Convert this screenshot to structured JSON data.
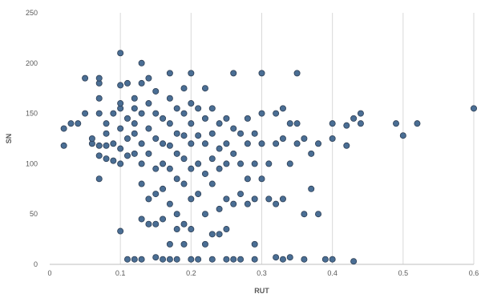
{
  "chart_data": {
    "type": "scatter",
    "title": "",
    "xlabel": "RUT",
    "ylabel": "SN",
    "xlim": [
      0,
      0.6
    ],
    "ylim": [
      0,
      250
    ],
    "x_ticks": [
      "0",
      "0.1",
      "0.2",
      "0.3",
      "0.4",
      "0.5",
      "0.6"
    ],
    "y_ticks": [
      "0",
      "50",
      "100",
      "150",
      "200",
      "250"
    ],
    "grid": "vertical",
    "legend": "none",
    "marker_color": "#4a6e94",
    "marker_edge_color": "#2e3f55",
    "series": [
      {
        "points": [
          [
            0.02,
            135
          ],
          [
            0.02,
            118
          ],
          [
            0.03,
            140
          ],
          [
            0.04,
            140
          ],
          [
            0.05,
            150
          ],
          [
            0.05,
            185
          ],
          [
            0.06,
            120
          ],
          [
            0.06,
            125
          ],
          [
            0.07,
            180
          ],
          [
            0.07,
            185
          ],
          [
            0.07,
            165
          ],
          [
            0.07,
            150
          ],
          [
            0.07,
            118
          ],
          [
            0.07,
            108
          ],
          [
            0.07,
            85
          ],
          [
            0.08,
            140
          ],
          [
            0.08,
            130
          ],
          [
            0.08,
            118
          ],
          [
            0.08,
            105
          ],
          [
            0.09,
            150
          ],
          [
            0.09,
            120
          ],
          [
            0.09,
            103
          ],
          [
            0.1,
            210
          ],
          [
            0.1,
            178
          ],
          [
            0.1,
            155
          ],
          [
            0.1,
            160
          ],
          [
            0.1,
            135
          ],
          [
            0.1,
            115
          ],
          [
            0.1,
            100
          ],
          [
            0.1,
            33
          ],
          [
            0.11,
            180
          ],
          [
            0.11,
            145
          ],
          [
            0.11,
            125
          ],
          [
            0.11,
            108
          ],
          [
            0.11,
            5
          ],
          [
            0.12,
            165
          ],
          [
            0.12,
            140
          ],
          [
            0.12,
            155
          ],
          [
            0.12,
            130
          ],
          [
            0.12,
            110
          ],
          [
            0.12,
            5
          ],
          [
            0.13,
            200
          ],
          [
            0.13,
            180
          ],
          [
            0.13,
            150
          ],
          [
            0.13,
            120
          ],
          [
            0.13,
            100
          ],
          [
            0.13,
            80
          ],
          [
            0.13,
            45
          ],
          [
            0.13,
            5
          ],
          [
            0.14,
            185
          ],
          [
            0.14,
            160
          ],
          [
            0.14,
            135
          ],
          [
            0.14,
            110
          ],
          [
            0.14,
            65
          ],
          [
            0.14,
            40
          ],
          [
            0.15,
            172
          ],
          [
            0.15,
            150
          ],
          [
            0.15,
            125
          ],
          [
            0.15,
            95
          ],
          [
            0.15,
            70
          ],
          [
            0.15,
            40
          ],
          [
            0.15,
            7
          ],
          [
            0.16,
            145
          ],
          [
            0.16,
            120
          ],
          [
            0.16,
            100
          ],
          [
            0.16,
            75
          ],
          [
            0.16,
            45
          ],
          [
            0.16,
            5
          ],
          [
            0.17,
            190
          ],
          [
            0.17,
            165
          ],
          [
            0.17,
            140
          ],
          [
            0.17,
            118
          ],
          [
            0.17,
            95
          ],
          [
            0.17,
            60
          ],
          [
            0.17,
            20
          ],
          [
            0.17,
            5
          ],
          [
            0.18,
            155
          ],
          [
            0.18,
            130
          ],
          [
            0.18,
            110
          ],
          [
            0.18,
            85
          ],
          [
            0.18,
            50
          ],
          [
            0.18,
            35
          ],
          [
            0.18,
            5
          ],
          [
            0.19,
            175
          ],
          [
            0.19,
            150
          ],
          [
            0.19,
            128
          ],
          [
            0.19,
            105
          ],
          [
            0.19,
            80
          ],
          [
            0.19,
            40
          ],
          [
            0.19,
            20
          ],
          [
            0.2,
            190
          ],
          [
            0.2,
            160
          ],
          [
            0.2,
            140
          ],
          [
            0.2,
            120
          ],
          [
            0.2,
            95
          ],
          [
            0.2,
            65
          ],
          [
            0.2,
            35
          ],
          [
            0.2,
            5
          ],
          [
            0.21,
            155
          ],
          [
            0.21,
            128
          ],
          [
            0.21,
            100
          ],
          [
            0.21,
            70
          ],
          [
            0.21,
            5
          ],
          [
            0.22,
            175
          ],
          [
            0.22,
            145
          ],
          [
            0.22,
            120
          ],
          [
            0.22,
            90
          ],
          [
            0.22,
            50
          ],
          [
            0.22,
            20
          ],
          [
            0.23,
            155
          ],
          [
            0.23,
            130
          ],
          [
            0.23,
            105
          ],
          [
            0.23,
            80
          ],
          [
            0.23,
            30
          ],
          [
            0.23,
            5
          ],
          [
            0.24,
            140
          ],
          [
            0.24,
            115
          ],
          [
            0.24,
            95
          ],
          [
            0.24,
            55
          ],
          [
            0.24,
            30
          ],
          [
            0.25,
            145
          ],
          [
            0.25,
            120
          ],
          [
            0.25,
            100
          ],
          [
            0.25,
            65
          ],
          [
            0.25,
            35
          ],
          [
            0.25,
            5
          ],
          [
            0.26,
            190
          ],
          [
            0.26,
            135
          ],
          [
            0.26,
            110
          ],
          [
            0.26,
            60
          ],
          [
            0.26,
            5
          ],
          [
            0.27,
            130
          ],
          [
            0.27,
            100
          ],
          [
            0.27,
            70
          ],
          [
            0.27,
            5
          ],
          [
            0.28,
            145
          ],
          [
            0.28,
            120
          ],
          [
            0.28,
            85
          ],
          [
            0.28,
            60
          ],
          [
            0.29,
            130
          ],
          [
            0.29,
            100
          ],
          [
            0.29,
            65
          ],
          [
            0.29,
            20
          ],
          [
            0.29,
            5
          ],
          [
            0.3,
            190
          ],
          [
            0.3,
            150
          ],
          [
            0.3,
            120
          ],
          [
            0.3,
            85
          ],
          [
            0.31,
            100
          ],
          [
            0.31,
            65
          ],
          [
            0.32,
            150
          ],
          [
            0.32,
            120
          ],
          [
            0.32,
            60
          ],
          [
            0.32,
            7
          ],
          [
            0.33,
            155
          ],
          [
            0.33,
            125
          ],
          [
            0.33,
            65
          ],
          [
            0.33,
            5
          ],
          [
            0.34,
            140
          ],
          [
            0.34,
            100
          ],
          [
            0.34,
            7
          ],
          [
            0.35,
            190
          ],
          [
            0.35,
            140
          ],
          [
            0.35,
            120
          ],
          [
            0.36,
            125
          ],
          [
            0.36,
            50
          ],
          [
            0.36,
            5
          ],
          [
            0.37,
            110
          ],
          [
            0.37,
            75
          ],
          [
            0.38,
            120
          ],
          [
            0.38,
            50
          ],
          [
            0.39,
            5
          ],
          [
            0.4,
            140
          ],
          [
            0.4,
            125
          ],
          [
            0.4,
            5
          ],
          [
            0.42,
            138
          ],
          [
            0.42,
            118
          ],
          [
            0.43,
            145
          ],
          [
            0.43,
            3
          ],
          [
            0.44,
            150
          ],
          [
            0.44,
            140
          ],
          [
            0.49,
            140
          ],
          [
            0.5,
            128
          ],
          [
            0.52,
            140
          ],
          [
            0.6,
            155
          ]
        ]
      }
    ]
  }
}
